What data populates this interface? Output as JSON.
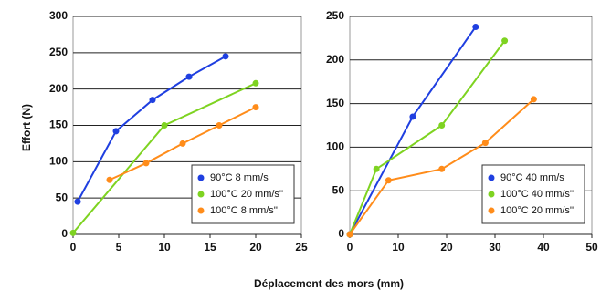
{
  "chart_data": [
    {
      "type": "line",
      "ylabel": "Effort (N)",
      "xlabel": "Déplacement des mors (mm)",
      "xlim": [
        0,
        25
      ],
      "xticks": [
        0,
        5,
        10,
        15,
        20,
        25
      ],
      "ylim": [
        0,
        300
      ],
      "yticks": [
        0,
        50,
        100,
        150,
        200,
        250,
        300
      ],
      "grid": true,
      "legend": "lower-right",
      "series": [
        {
          "name": "90°C  8 mm/s",
          "color": "#1f3fe0",
          "x": [
            0.5,
            4.7,
            8.7,
            12.7,
            16.7
          ],
          "values": [
            45,
            142,
            185,
            217,
            245
          ]
        },
        {
          "name": "100°C 20 mm/s''",
          "color": "#7ed321",
          "x": [
            0,
            10,
            20
          ],
          "values": [
            2,
            150,
            208
          ]
        },
        {
          "name": "100°C  8 mm/s''",
          "color": "#ff8c1a",
          "x": [
            4,
            8,
            12,
            16,
            20
          ],
          "values": [
            75,
            98,
            125,
            150,
            175
          ]
        }
      ]
    },
    {
      "type": "line",
      "xlim": [
        0,
        50
      ],
      "xticks": [
        0,
        10,
        20,
        30,
        40,
        50
      ],
      "ylim": [
        0,
        250
      ],
      "yticks": [
        0,
        50,
        100,
        150,
        200,
        250
      ],
      "grid": true,
      "legend": "lower-right",
      "series": [
        {
          "name": "90°C 40 mm/s",
          "color": "#1f3fe0",
          "x": [
            0,
            13,
            26
          ],
          "values": [
            0,
            135,
            238
          ]
        },
        {
          "name": "100°C 40 mm/s''",
          "color": "#7ed321",
          "x": [
            0,
            5.5,
            19,
            32
          ],
          "values": [
            0,
            75,
            125,
            222
          ]
        },
        {
          "name": "100°C 20 mm/s''",
          "color": "#ff8c1a",
          "x": [
            0,
            8,
            19,
            28,
            38
          ],
          "values": [
            0,
            62,
            75,
            105,
            155
          ]
        }
      ]
    }
  ]
}
